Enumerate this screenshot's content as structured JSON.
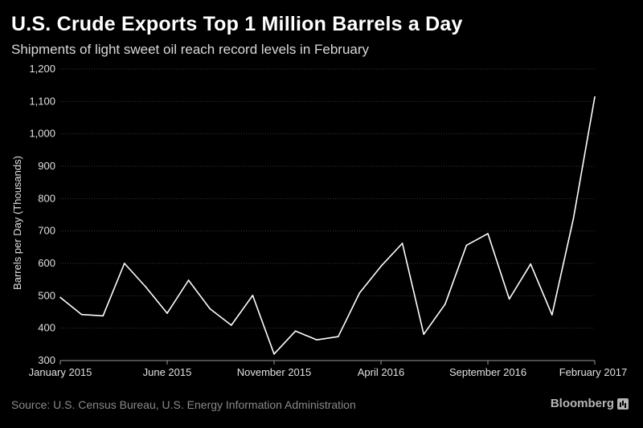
{
  "header": {
    "title": "U.S. Crude Exports Top 1 Million Barrels a Day",
    "subtitle": "Shipments of light sweet oil reach record levels in February"
  },
  "footer": {
    "source": "Source: U.S. Census Bureau, U.S. Energy Information Administration",
    "brand": "Bloomberg",
    "brand_icon": "bloomberg-chart-icon"
  },
  "colors": {
    "background": "#000000",
    "line": "#ffffff",
    "grid": "#3a3a3a",
    "axis": "#9a9a9a"
  },
  "chart_data": {
    "type": "line",
    "title": "U.S. Crude Exports Top 1 Million Barrels a Day",
    "subtitle": "Shipments of light sweet oil reach record levels in February",
    "xlabel": "",
    "ylabel": "Barrels per Day (Thousands)",
    "ylim": [
      300,
      1200
    ],
    "yticks": [
      300,
      400,
      500,
      600,
      700,
      800,
      900,
      1000,
      1100,
      1200
    ],
    "ytick_labels": [
      "300",
      "400",
      "500",
      "600",
      "700",
      "800",
      "900",
      "1,000",
      "1,100",
      "1,200"
    ],
    "grid": true,
    "y_axis_side": "left",
    "xticks": [
      {
        "index": 0,
        "label": "January 2015"
      },
      {
        "index": 5,
        "label": "June 2015"
      },
      {
        "index": 10,
        "label": "November 2015"
      },
      {
        "index": 15,
        "label": "April 2016"
      },
      {
        "index": 20,
        "label": "September 2016"
      },
      {
        "index": 25,
        "label": "February 2017"
      }
    ],
    "x": [
      "2015-01",
      "2015-02",
      "2015-03",
      "2015-04",
      "2015-05",
      "2015-06",
      "2015-07",
      "2015-08",
      "2015-09",
      "2015-10",
      "2015-11",
      "2015-12",
      "2016-01",
      "2016-02",
      "2016-03",
      "2016-04",
      "2016-05",
      "2016-06",
      "2016-07",
      "2016-08",
      "2016-09",
      "2016-10",
      "2016-11",
      "2016-12",
      "2017-01",
      "2017-02"
    ],
    "series": [
      {
        "values": [
          495,
          442,
          438,
          600,
          527,
          446,
          548,
          460,
          409,
          501,
          320,
          391,
          364,
          374,
          509,
          591,
          662,
          381,
          474,
          656,
          692,
          490,
          598,
          441,
          738,
          1114
        ]
      }
    ]
  }
}
